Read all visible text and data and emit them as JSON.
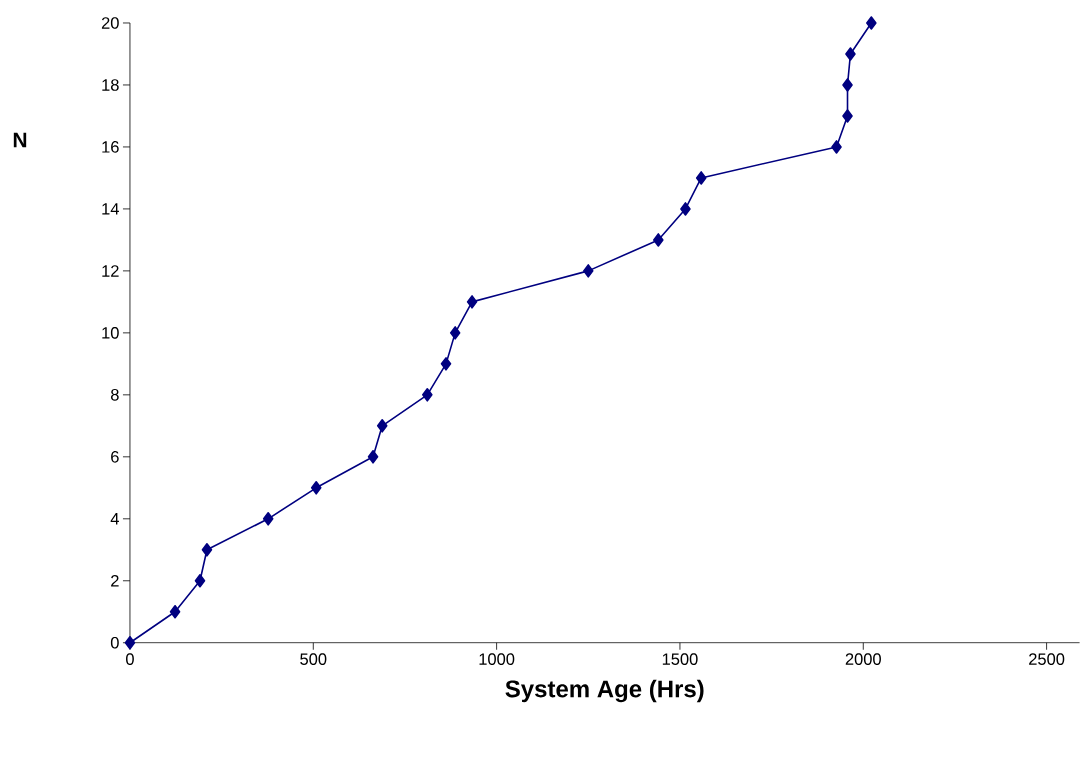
{
  "chart_data": {
    "type": "line",
    "xlabel": "System Age (Hrs)",
    "ylabel": "N",
    "x": [
      0,
      123,
      191,
      210,
      377,
      508,
      663,
      688,
      811,
      862,
      887,
      933,
      1250,
      1441,
      1515,
      1558,
      1927,
      1957,
      1957,
      1965,
      2022
    ],
    "series": [
      {
        "color": "#000080",
        "values": [
          0,
          1,
          2,
          3,
          4,
          5,
          6,
          7,
          8,
          9,
          10,
          11,
          12,
          13,
          14,
          15,
          16,
          17,
          18,
          19,
          20
        ]
      }
    ],
    "xlim": [
      0,
      2590
    ],
    "ylim": [
      0,
      20
    ],
    "xticks": [
      0,
      500,
      1000,
      1500,
      2000,
      2500
    ],
    "yticks": [
      0,
      2,
      4,
      6,
      8,
      10,
      12,
      14,
      16,
      18,
      20
    ],
    "marker": "diamond",
    "line_style": "solid"
  }
}
